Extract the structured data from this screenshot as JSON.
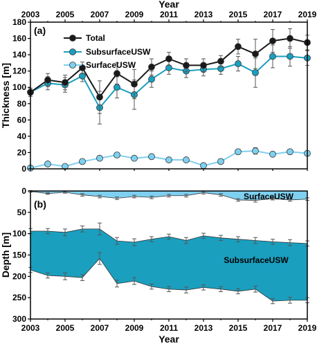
{
  "colors": {
    "total": "#1a1a1a",
    "subsurface": "#1a9fbf",
    "surface": "#7fd0f0",
    "error": "#555555",
    "frame": "#000000"
  },
  "chart_data": [
    {
      "type": "line",
      "panel_label": "(a)",
      "top_xlabel": "Year",
      "ylabel": "Thickness [m]",
      "x": [
        2003,
        2004,
        2005,
        2006,
        2007,
        2008,
        2009,
        2010,
        2011,
        2012,
        2013,
        2014,
        2015,
        2016,
        2017,
        2018,
        2019
      ],
      "xlim": [
        2003,
        2019
      ],
      "xticks": [
        "2003",
        "2005",
        "2007",
        "2009",
        "2011",
        "2013",
        "2015",
        "2017",
        "2019"
      ],
      "ylim": [
        0,
        180
      ],
      "yticks": [
        "0",
        "20",
        "40",
        "60",
        "80",
        "100",
        "120",
        "140",
        "160",
        "180"
      ],
      "legend_position": "top-left",
      "series": [
        {
          "name": "Total",
          "values": [
            94,
            109,
            106,
            124,
            88,
            117,
            104,
            125,
            135,
            127,
            127,
            132,
            150,
            141,
            157,
            160,
            155
          ],
          "errors": [
            5,
            8,
            9,
            7,
            20,
            13,
            18,
            10,
            8,
            8,
            8,
            7,
            9,
            18,
            14,
            12,
            9
          ]
        },
        {
          "name": "SubsurfaceUSW",
          "values": [
            94,
            105,
            103,
            114,
            75,
            100,
            91,
            110,
            124,
            120,
            122,
            123,
            129,
            118,
            138,
            138,
            136
          ],
          "errors": [
            5,
            8,
            9,
            7,
            20,
            13,
            18,
            10,
            8,
            8,
            8,
            7,
            9,
            18,
            14,
            12,
            9
          ]
        },
        {
          "name": "SurfaceUSW",
          "values": [
            1,
            6,
            3,
            9,
            13,
            17,
            13,
            15,
            11,
            11,
            4,
            9,
            21,
            22,
            18,
            21,
            19
          ],
          "errors": [
            2,
            2,
            2,
            3,
            3,
            3,
            3,
            3,
            3,
            3,
            3,
            3,
            3,
            4,
            3,
            3,
            3
          ]
        }
      ]
    },
    {
      "type": "area",
      "panel_label": "(b)",
      "xlabel": "Year",
      "ylabel": "Depth [m]",
      "x": [
        2003,
        2004,
        2005,
        2006,
        2007,
        2008,
        2009,
        2010,
        2011,
        2012,
        2013,
        2014,
        2015,
        2016,
        2017,
        2018,
        2019
      ],
      "xlim": [
        2003,
        2019
      ],
      "xticks": [
        "2003",
        "2005",
        "2007",
        "2009",
        "2011",
        "2013",
        "2015",
        "2017",
        "2019"
      ],
      "ylim": [
        300,
        0
      ],
      "yticks": [
        "0",
        "50",
        "100",
        "150",
        "200",
        "250",
        "300"
      ],
      "series": [
        {
          "name": "SurfaceUSW",
          "top": [
            0,
            0,
            0,
            0,
            0,
            0,
            0,
            0,
            0,
            0,
            0,
            0,
            0,
            0,
            0,
            0,
            0
          ],
          "bottom": [
            1,
            6,
            3,
            9,
            13,
            17,
            13,
            15,
            11,
            11,
            4,
            9,
            21,
            22,
            18,
            21,
            19
          ]
        },
        {
          "name": "SubsurfaceUSW",
          "top": [
            94,
            94,
            97,
            89,
            89,
            117,
            120,
            113,
            107,
            116,
            105,
            110,
            113,
            116,
            119,
            121,
            123
          ],
          "bottom": [
            185,
            198,
            200,
            203,
            158,
            217,
            211,
            224,
            230,
            232,
            226,
            230,
            235,
            230,
            258,
            256,
            256
          ],
          "errors": [
            6,
            6,
            8,
            7,
            14,
            8,
            8,
            6,
            6,
            7,
            6,
            6,
            6,
            7,
            6,
            7,
            6
          ]
        }
      ]
    }
  ]
}
